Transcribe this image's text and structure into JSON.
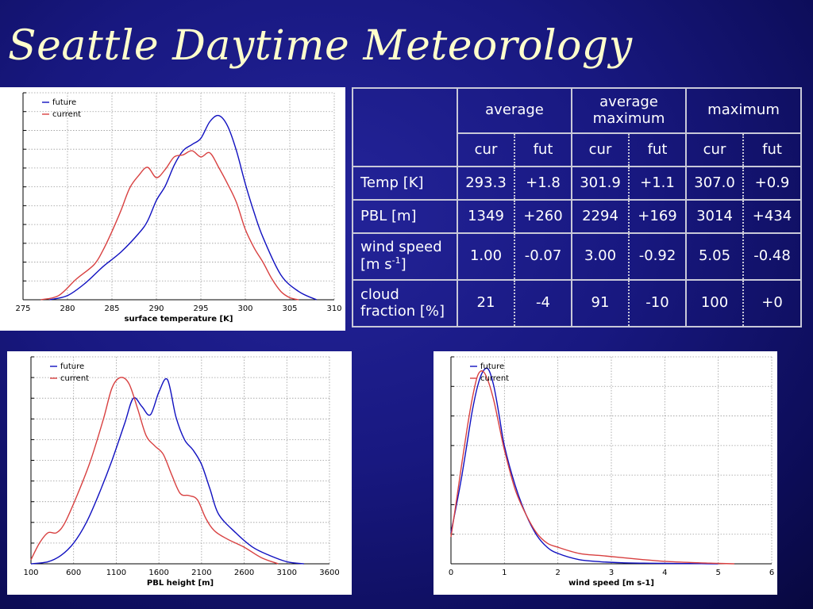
{
  "slide": {
    "title": "Seattle Daytime Meteorology"
  },
  "colors": {
    "future": "#1010c0",
    "current": "#d84040",
    "background": "#181880",
    "title": "#ffffcc"
  },
  "table": {
    "group_headers": [
      "average",
      "average maximum",
      "maximum"
    ],
    "sub_headers": [
      "cur",
      "fut",
      "cur",
      "fut",
      "cur",
      "fut"
    ],
    "rows": [
      {
        "label": "Temp [K]",
        "values": [
          "293.3",
          "+1.8",
          "301.9",
          "+1.1",
          "307.0",
          "+0.9"
        ]
      },
      {
        "label": "PBL [m]",
        "values": [
          "1349",
          "+260",
          "2294",
          "+169",
          "3014",
          "+434"
        ]
      },
      {
        "label": "wind speed [m s-1]",
        "label_prefix": "wind speed [m s",
        "label_sup": "-1",
        "label_suffix": "]",
        "values": [
          "1.00",
          "-0.07",
          "3.00",
          "-0.92",
          "5.05",
          "-0.48"
        ]
      },
      {
        "label": "cloud fraction [%]",
        "values": [
          "21",
          "-4",
          "91",
          "-10",
          "100",
          "+0"
        ]
      }
    ]
  },
  "chart_data": [
    {
      "type": "line",
      "xlabel": "surface temperature [K]",
      "xlim": [
        275,
        310
      ],
      "ylim": [
        0,
        1
      ],
      "xticks": [
        275,
        280,
        285,
        290,
        295,
        300,
        305,
        310
      ],
      "grid": true,
      "legend_position": "top-left",
      "series": [
        {
          "name": "future",
          "x": [
            278,
            280,
            282,
            284,
            286,
            288,
            289,
            290,
            291,
            292,
            293,
            294,
            295,
            296,
            297,
            298,
            299,
            300,
            301,
            302,
            304,
            306,
            308
          ],
          "y": [
            0.0,
            0.02,
            0.08,
            0.16,
            0.23,
            0.32,
            0.38,
            0.48,
            0.55,
            0.65,
            0.72,
            0.75,
            0.78,
            0.86,
            0.89,
            0.84,
            0.72,
            0.56,
            0.42,
            0.3,
            0.12,
            0.04,
            0.0
          ]
        },
        {
          "name": "current",
          "x": [
            277,
            279,
            281,
            283,
            284,
            285,
            286,
            287,
            288,
            289,
            290,
            291,
            292,
            293,
            294,
            295,
            296,
            297,
            298,
            299,
            300,
            301,
            302,
            303,
            304,
            305,
            306
          ],
          "y": [
            0.0,
            0.02,
            0.1,
            0.17,
            0.24,
            0.33,
            0.43,
            0.54,
            0.6,
            0.64,
            0.59,
            0.63,
            0.69,
            0.7,
            0.72,
            0.69,
            0.71,
            0.64,
            0.56,
            0.47,
            0.34,
            0.25,
            0.18,
            0.1,
            0.04,
            0.01,
            0.0
          ]
        }
      ]
    },
    {
      "type": "line",
      "xlabel": "PBL height [m]",
      "xlim": [
        100,
        3600
      ],
      "ylim": [
        0,
        1
      ],
      "xticks": [
        100,
        600,
        1100,
        1600,
        2100,
        2600,
        3100,
        3600
      ],
      "grid": true,
      "legend_position": "top-left",
      "series": [
        {
          "name": "future",
          "x": [
            100,
            300,
            450,
            600,
            750,
            900,
            1050,
            1200,
            1300,
            1400,
            1500,
            1600,
            1700,
            1800,
            1900,
            2000,
            2100,
            2200,
            2300,
            2500,
            2700,
            2900,
            3100,
            3300
          ],
          "y": [
            0.0,
            0.01,
            0.04,
            0.1,
            0.2,
            0.34,
            0.5,
            0.68,
            0.8,
            0.76,
            0.72,
            0.83,
            0.89,
            0.71,
            0.6,
            0.55,
            0.48,
            0.36,
            0.24,
            0.15,
            0.08,
            0.04,
            0.01,
            0.0
          ]
        },
        {
          "name": "current",
          "x": [
            100,
            200,
            300,
            400,
            500,
            650,
            800,
            950,
            1050,
            1150,
            1250,
            1350,
            1450,
            1550,
            1650,
            1750,
            1850,
            1950,
            2050,
            2150,
            2250,
            2400,
            2600,
            2800,
            3000
          ],
          "y": [
            0.02,
            0.1,
            0.15,
            0.15,
            0.2,
            0.34,
            0.5,
            0.7,
            0.85,
            0.9,
            0.87,
            0.75,
            0.62,
            0.57,
            0.53,
            0.43,
            0.34,
            0.33,
            0.31,
            0.22,
            0.16,
            0.12,
            0.08,
            0.03,
            0.0
          ]
        }
      ]
    },
    {
      "type": "line",
      "xlabel": "wind speed [m s-1]",
      "xlim": [
        0,
        6
      ],
      "ylim": [
        0,
        1
      ],
      "xticks": [
        0,
        1,
        2,
        3,
        4,
        5,
        6
      ],
      "grid": true,
      "legend_position": "top-left",
      "series": [
        {
          "name": "future",
          "x": [
            0,
            0.1,
            0.2,
            0.3,
            0.4,
            0.5,
            0.6,
            0.7,
            0.8,
            0.9,
            1.0,
            1.2,
            1.4,
            1.6,
            1.8,
            2.0,
            2.4,
            2.8,
            3.2,
            3.6,
            4.0,
            4.5,
            5.0
          ],
          "y": [
            0.15,
            0.28,
            0.42,
            0.58,
            0.74,
            0.86,
            0.93,
            0.94,
            0.86,
            0.72,
            0.57,
            0.38,
            0.24,
            0.14,
            0.08,
            0.05,
            0.02,
            0.01,
            0.005,
            0.003,
            0.002,
            0.001,
            0.0
          ]
        },
        {
          "name": "current",
          "x": [
            0,
            0.1,
            0.2,
            0.3,
            0.4,
            0.5,
            0.6,
            0.7,
            0.8,
            0.9,
            1.0,
            1.2,
            1.4,
            1.6,
            1.8,
            2.0,
            2.4,
            2.8,
            3.2,
            3.6,
            4.0,
            4.5,
            5.0,
            5.3
          ],
          "y": [
            0.13,
            0.3,
            0.48,
            0.65,
            0.8,
            0.91,
            0.93,
            0.88,
            0.79,
            0.67,
            0.55,
            0.36,
            0.24,
            0.15,
            0.1,
            0.08,
            0.05,
            0.04,
            0.03,
            0.02,
            0.012,
            0.006,
            0.002,
            0.0
          ]
        }
      ]
    }
  ]
}
